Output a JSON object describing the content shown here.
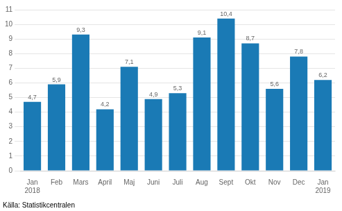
{
  "chart_data": {
    "type": "bar",
    "categories": [
      "Jan\n2018",
      "Feb",
      "Mars",
      "April",
      "Maj",
      "Juni",
      "Juli",
      "Aug",
      "Sept",
      "Okt",
      "Nov",
      "Dec",
      "Jan\n2019"
    ],
    "values": [
      4.7,
      5.9,
      9.3,
      4.2,
      7.1,
      4.9,
      5.3,
      9.1,
      10.4,
      8.7,
      5.6,
      7.8,
      6.2
    ],
    "value_labels": [
      "4,7",
      "5,9",
      "9,3",
      "4,2",
      "7,1",
      "4,9",
      "5,3",
      "9,1",
      "10,4",
      "8,7",
      "5,6",
      "7,8",
      "6,2"
    ],
    "color": "#1a7ab5",
    "ylim": [
      0,
      11
    ],
    "yticks": [
      0,
      1,
      2,
      3,
      4,
      5,
      6,
      7,
      8,
      9,
      10,
      11
    ],
    "grid": true,
    "data_labels": true,
    "annotations": [
      "Källa: Statistikcentralen"
    ]
  }
}
